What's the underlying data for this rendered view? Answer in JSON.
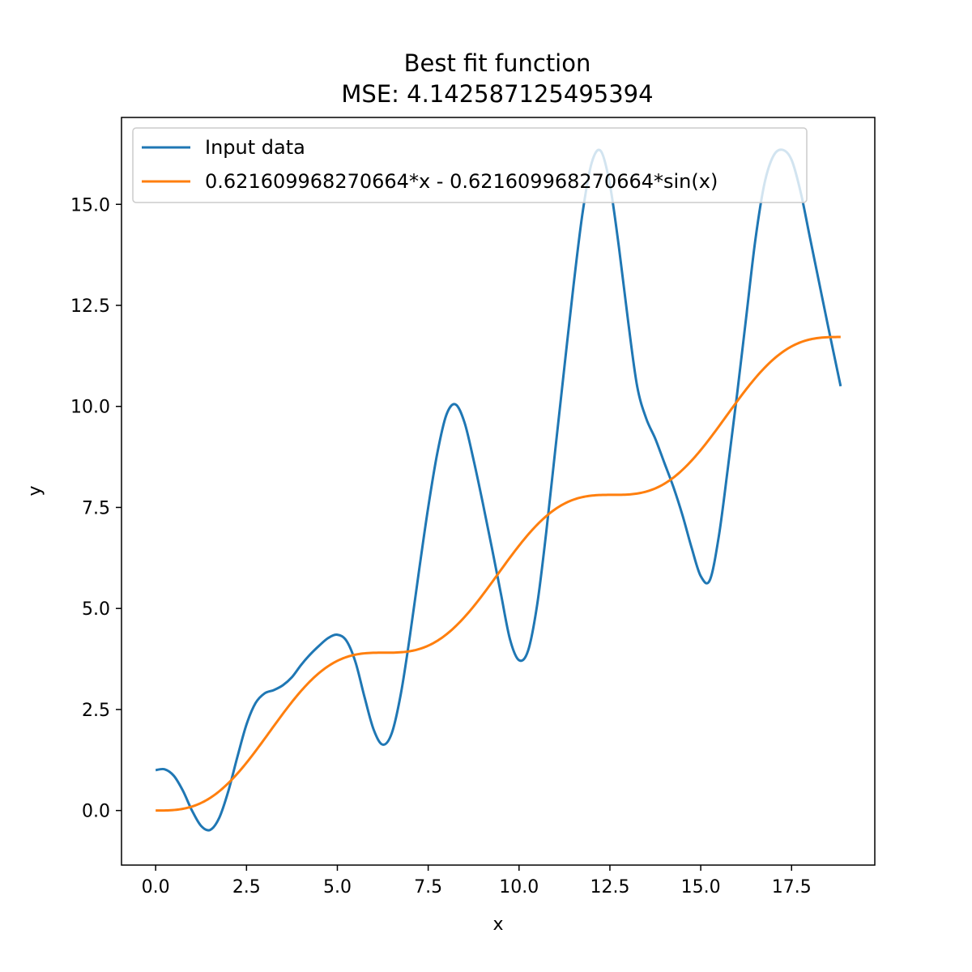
{
  "chart_data": {
    "type": "line",
    "title": "Best fit function",
    "subtitle": "MSE: 4.142587125495394",
    "xlabel": "x",
    "ylabel": "y",
    "xlim": [
      -0.94,
      19.79
    ],
    "ylim": [
      -1.35,
      17.15
    ],
    "grid": false,
    "legend_position": "top-left",
    "xticks": [
      0.0,
      2.5,
      5.0,
      7.5,
      10.0,
      12.5,
      15.0,
      17.5
    ],
    "xtick_labels": [
      "0.0",
      "2.5",
      "5.0",
      "7.5",
      "10.0",
      "12.5",
      "15.0",
      "17.5"
    ],
    "yticks": [
      0.0,
      2.5,
      5.0,
      7.5,
      10.0,
      12.5,
      15.0
    ],
    "ytick_labels": [
      "0.0",
      "2.5",
      "5.0",
      "7.5",
      "10.0",
      "12.5",
      "15.0"
    ],
    "series": [
      {
        "name": "Input data",
        "color": "#1f77b4",
        "x": [
          0.0,
          0.25,
          0.5,
          0.75,
          1.0,
          1.25,
          1.5,
          1.75,
          2.0,
          2.25,
          2.5,
          2.75,
          3.0,
          3.25,
          3.5,
          3.75,
          4.0,
          4.25,
          4.5,
          4.75,
          5.0,
          5.25,
          5.5,
          5.75,
          6.0,
          6.25,
          6.5,
          6.75,
          7.0,
          7.25,
          7.5,
          7.75,
          8.0,
          8.25,
          8.5,
          8.75,
          9.0,
          9.25,
          9.5,
          9.75,
          10.0,
          10.25,
          10.5,
          10.75,
          11.0,
          11.25,
          11.5,
          11.75,
          12.0,
          12.25,
          12.5,
          12.75,
          13.0,
          13.25,
          13.5,
          13.75,
          14.0,
          14.25,
          14.5,
          14.75,
          15.0,
          15.25,
          15.5,
          15.75,
          16.0,
          16.25,
          16.5,
          16.75,
          17.0,
          17.25,
          17.5,
          17.75,
          18.0,
          18.25,
          18.5,
          18.85
        ],
        "values": [
          1.0,
          1.02,
          0.86,
          0.49,
          0.0,
          -0.38,
          -0.48,
          -0.18,
          0.48,
          1.33,
          2.13,
          2.66,
          2.9,
          2.98,
          3.1,
          3.3,
          3.6,
          3.86,
          4.08,
          4.27,
          4.35,
          4.2,
          3.67,
          2.8,
          2.0,
          1.63,
          1.92,
          2.9,
          4.34,
          5.95,
          7.5,
          8.84,
          9.79,
          10.05,
          9.6,
          8.67,
          7.62,
          6.51,
          5.37,
          4.24,
          3.72,
          3.96,
          5.1,
          6.9,
          8.95,
          10.99,
          13.0,
          14.8,
          16.03,
          16.32,
          15.49,
          13.93,
          12.12,
          10.5,
          9.7,
          9.2,
          8.6,
          8.0,
          7.3,
          6.5,
          5.8,
          5.7,
          6.8,
          8.5,
          10.3,
          12.2,
          14.1,
          15.5,
          16.2,
          16.35,
          16.1,
          15.3,
          14.2,
          13.1,
          12.0,
          10.5
        ]
      },
      {
        "name": "0.621609968270664*x - 0.621609968270664*sin(x)",
        "color": "#ff7f0e",
        "formula_coefficient": 0.621609968270664,
        "x_range": [
          0.0,
          18.85
        ]
      }
    ]
  }
}
